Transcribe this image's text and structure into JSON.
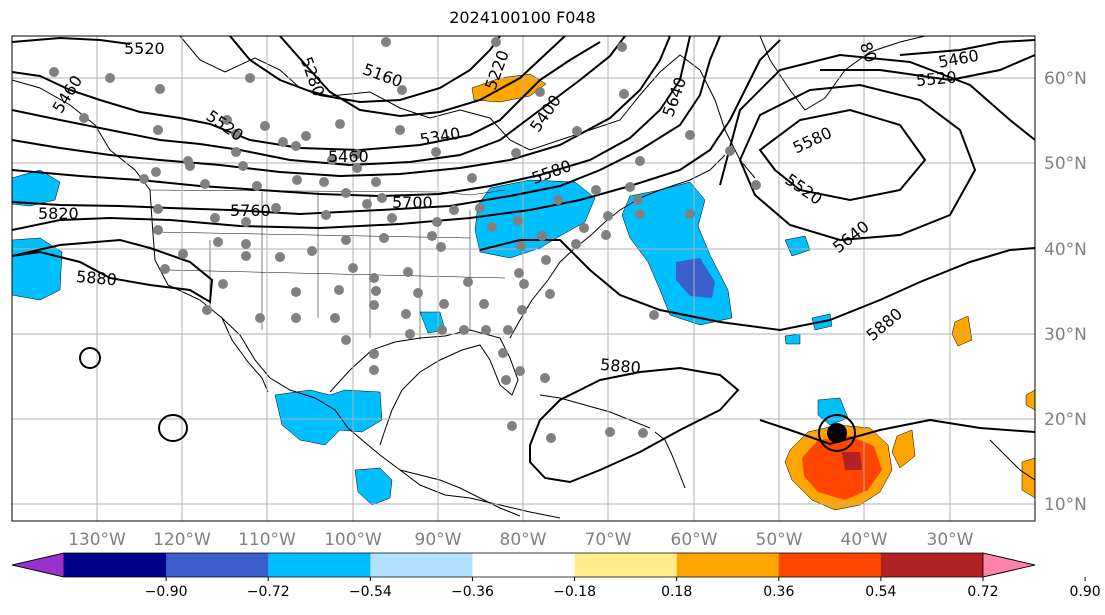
{
  "title": "2024100100 F048",
  "lat_labels": [
    "60°N",
    "50°N",
    "40°N",
    "30°N",
    "20°N",
    "10°N"
  ],
  "lon_labels": [
    "130°W",
    "120°W",
    "110°W",
    "100°W",
    "90°W",
    "80°W",
    "70°W",
    "60°W",
    "50°W",
    "40°W",
    "30°W"
  ],
  "colorbar": {
    "ticks": [
      "−0.90",
      "−0.72",
      "−0.54",
      "−0.36",
      "−0.18",
      "0.18",
      "0.36",
      "0.54",
      "0.72",
      "0.90"
    ],
    "colors": [
      "#9932cc",
      "#00008b",
      "#3a5fcd",
      "#00bfff",
      "#b0e2ff",
      "#ffffff",
      "#ffec8b",
      "#ffa500",
      "#ff4500",
      "#b22222",
      "#ff82ab"
    ]
  },
  "contour_labels": [
    "5520",
    "5460",
    "5280",
    "5160",
    "5220",
    "5400",
    "5640",
    "5340",
    "5520",
    "5460",
    "5580",
    "5700",
    "5760",
    "5820",
    "5880",
    "5880",
    "5580",
    "5520",
    "5640",
    "5880",
    "5460",
    "5520",
    "80"
  ],
  "map_colors": {
    "land_border": "#000000",
    "grid": "#b0b0b0",
    "station": "#808080",
    "storm": "#000000"
  }
}
